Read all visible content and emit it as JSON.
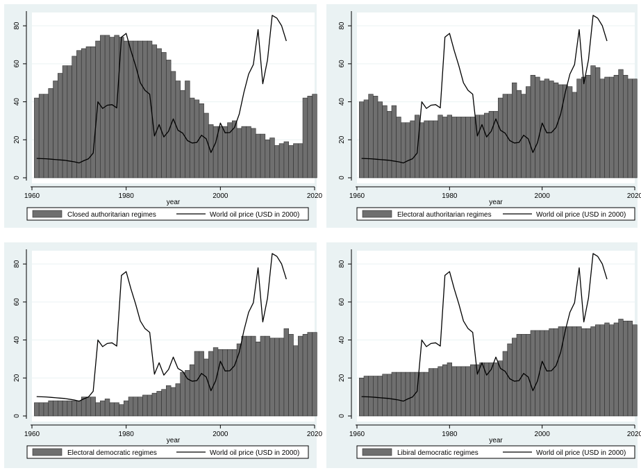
{
  "chart_data": [
    {
      "type": "bar",
      "xlabel": "year",
      "ylabel": "",
      "xlim": [
        1960,
        2020
      ],
      "ylim": [
        0,
        87
      ],
      "xticks": [
        "1960",
        "1980",
        "2000",
        "2020"
      ],
      "yticks": [
        "0",
        "20",
        "40",
        "60",
        "80"
      ],
      "grid": true,
      "legend_position": "bottom",
      "bar_x_start": 1961,
      "series": [
        {
          "name": "Closed authoritarian regimes",
          "kind": "bar",
          "values": [
            42,
            44,
            44,
            47,
            51,
            55,
            59,
            59,
            64,
            67,
            68,
            69,
            69,
            72,
            75,
            75,
            74,
            75,
            74,
            72,
            72,
            72,
            72,
            72,
            72,
            70,
            68,
            66,
            62,
            56,
            51,
            46,
            51,
            42,
            41,
            39,
            34,
            28,
            27,
            27,
            27,
            29,
            30,
            26,
            27,
            27,
            26,
            23,
            23,
            20,
            21,
            17,
            18,
            19,
            17,
            18,
            18,
            42,
            43,
            44
          ]
        },
        {
          "name": "World oil price (USD in 2000)",
          "kind": "line",
          "x": [
            1961,
            1962,
            1963,
            1964,
            1965,
            1966,
            1967,
            1968,
            1969,
            1970,
            1971,
            1972,
            1973,
            1974,
            1975,
            1976,
            1977,
            1978,
            1979,
            1980,
            1981,
            1982,
            1983,
            1984,
            1985,
            1986,
            1987,
            1988,
            1989,
            1990,
            1991,
            1992,
            1993,
            1994,
            1995,
            1996,
            1997,
            1998,
            1999,
            2000,
            2001,
            2002,
            2003,
            2004,
            2005,
            2006,
            2007,
            2008,
            2009,
            2010,
            2011,
            2012,
            2013,
            2014
          ],
          "values": [
            10.2,
            10.1,
            10,
            9.8,
            9.6,
            9.4,
            9.2,
            8.8,
            8.4,
            7.8,
            9,
            10,
            13,
            40,
            36.5,
            38.2,
            38.5,
            36.8,
            74,
            76,
            67,
            59,
            50,
            46,
            44,
            22,
            28,
            21.5,
            24.5,
            31,
            25,
            23.5,
            19.6,
            18.3,
            18.6,
            22.4,
            20.5,
            13.3,
            18.5,
            28.8,
            23.7,
            23.8,
            26.5,
            33.5,
            45,
            54.6,
            59.6,
            78,
            49.5,
            62,
            85.5,
            84,
            80,
            72
          ]
        }
      ],
      "legend": [
        "Closed authoritarian regimes",
        "World oil price (USD in 2000)"
      ]
    },
    {
      "type": "bar",
      "xlabel": "year",
      "ylabel": "",
      "xlim": [
        1960,
        2020
      ],
      "ylim": [
        0,
        87
      ],
      "xticks": [
        "1960",
        "1980",
        "2000",
        "2020"
      ],
      "yticks": [
        "0",
        "20",
        "40",
        "60",
        "80"
      ],
      "grid": true,
      "legend_position": "bottom",
      "bar_x_start": 1961,
      "series": [
        {
          "name": "Electoral authoritarian regimes",
          "kind": "bar",
          "values": [
            40,
            41,
            44,
            43,
            40,
            38,
            35,
            38,
            32,
            29,
            29,
            30,
            33,
            29,
            30,
            30,
            30,
            33,
            32,
            33,
            32,
            32,
            32,
            32,
            32,
            33,
            33,
            34,
            35,
            35,
            42,
            44,
            44,
            50,
            46,
            44,
            48,
            54,
            53,
            51,
            52,
            51,
            50,
            49,
            49,
            48,
            45,
            52,
            53,
            54,
            59,
            58,
            52,
            53,
            53,
            54,
            57,
            54,
            52,
            52
          ]
        },
        {
          "name": "World oil price (USD in 2000)",
          "kind": "line",
          "x": [
            1961,
            1962,
            1963,
            1964,
            1965,
            1966,
            1967,
            1968,
            1969,
            1970,
            1971,
            1972,
            1973,
            1974,
            1975,
            1976,
            1977,
            1978,
            1979,
            1980,
            1981,
            1982,
            1983,
            1984,
            1985,
            1986,
            1987,
            1988,
            1989,
            1990,
            1991,
            1992,
            1993,
            1994,
            1995,
            1996,
            1997,
            1998,
            1999,
            2000,
            2001,
            2002,
            2003,
            2004,
            2005,
            2006,
            2007,
            2008,
            2009,
            2010,
            2011,
            2012,
            2013,
            2014
          ],
          "values": [
            10.2,
            10.1,
            10,
            9.8,
            9.6,
            9.4,
            9.2,
            8.8,
            8.4,
            7.8,
            9,
            10,
            13,
            40,
            36.5,
            38.2,
            38.5,
            36.8,
            74,
            76,
            67,
            59,
            50,
            46,
            44,
            22,
            28,
            21.5,
            24.5,
            31,
            25,
            23.5,
            19.6,
            18.3,
            18.6,
            22.4,
            20.5,
            13.3,
            18.5,
            28.8,
            23.7,
            23.8,
            26.5,
            33.5,
            45,
            54.6,
            59.6,
            78,
            49.5,
            62,
            85.5,
            84,
            80,
            72
          ]
        }
      ],
      "legend": [
        "Electoral authoritarian regimes",
        "World oil price (USD in 2000)"
      ]
    },
    {
      "type": "bar",
      "xlabel": "year",
      "ylabel": "",
      "xlim": [
        1960,
        2020
      ],
      "ylim": [
        0,
        87
      ],
      "xticks": [
        "1960",
        "1980",
        "2000",
        "2020"
      ],
      "yticks": [
        "0",
        "20",
        "40",
        "60",
        "80"
      ],
      "grid": true,
      "legend_position": "bottom",
      "bar_x_start": 1961,
      "series": [
        {
          "name": "Electoral democratic regimes",
          "kind": "bar",
          "values": [
            7,
            7,
            7,
            8,
            8,
            8,
            8,
            8,
            8,
            8,
            10,
            10,
            10,
            7,
            8,
            9,
            7,
            7,
            6,
            8,
            10,
            10,
            10,
            11,
            11,
            12,
            13,
            14,
            16,
            15,
            17,
            23,
            24,
            27,
            34,
            34,
            30,
            34,
            36,
            35,
            35,
            35,
            35,
            38,
            42,
            42,
            42,
            39,
            42,
            42,
            41,
            41,
            41,
            46,
            43,
            37,
            42,
            43,
            44,
            44
          ]
        },
        {
          "name": "World oil price (USD in 2000)",
          "kind": "line",
          "x": [
            1961,
            1962,
            1963,
            1964,
            1965,
            1966,
            1967,
            1968,
            1969,
            1970,
            1971,
            1972,
            1973,
            1974,
            1975,
            1976,
            1977,
            1978,
            1979,
            1980,
            1981,
            1982,
            1983,
            1984,
            1985,
            1986,
            1987,
            1988,
            1989,
            1990,
            1991,
            1992,
            1993,
            1994,
            1995,
            1996,
            1997,
            1998,
            1999,
            2000,
            2001,
            2002,
            2003,
            2004,
            2005,
            2006,
            2007,
            2008,
            2009,
            2010,
            2011,
            2012,
            2013,
            2014
          ],
          "values": [
            10.2,
            10.1,
            10,
            9.8,
            9.6,
            9.4,
            9.2,
            8.8,
            8.4,
            7.8,
            9,
            10,
            13,
            40,
            36.5,
            38.2,
            38.5,
            36.8,
            74,
            76,
            67,
            59,
            50,
            46,
            44,
            22,
            28,
            21.5,
            24.5,
            31,
            25,
            23.5,
            19.6,
            18.3,
            18.6,
            22.4,
            20.5,
            13.3,
            18.5,
            28.8,
            23.7,
            23.8,
            26.5,
            33.5,
            45,
            54.6,
            59.6,
            78,
            49.5,
            62,
            85.5,
            84,
            80,
            72
          ]
        }
      ],
      "legend": [
        "Electoral democratic regimes",
        "World oil price (USD in 2000)"
      ]
    },
    {
      "type": "bar",
      "xlabel": "year",
      "ylabel": "",
      "xlim": [
        1960,
        2020
      ],
      "ylim": [
        0,
        87
      ],
      "xticks": [
        "1960",
        "1980",
        "2000",
        "2020"
      ],
      "yticks": [
        "0",
        "20",
        "40",
        "60",
        "80"
      ],
      "grid": true,
      "legend_position": "bottom",
      "bar_x_start": 1961,
      "series": [
        {
          "name": "Libiral democratic regimes",
          "kind": "bar",
          "values": [
            20,
            21,
            21,
            21,
            21,
            22,
            22,
            23,
            23,
            23,
            23,
            23,
            23,
            23,
            23,
            25,
            25,
            26,
            27,
            28,
            26,
            26,
            26,
            26,
            27,
            27,
            28,
            28,
            28,
            28,
            29,
            34,
            38,
            41,
            43,
            43,
            43,
            45,
            45,
            45,
            45,
            46,
            46,
            47,
            47,
            47,
            47,
            47,
            46,
            46,
            47,
            48,
            48,
            49,
            48,
            49,
            51,
            50,
            50,
            48
          ]
        },
        {
          "name": "World oil price (USD in 2000)",
          "kind": "line",
          "x": [
            1961,
            1962,
            1963,
            1964,
            1965,
            1966,
            1967,
            1968,
            1969,
            1970,
            1971,
            1972,
            1973,
            1974,
            1975,
            1976,
            1977,
            1978,
            1979,
            1980,
            1981,
            1982,
            1983,
            1984,
            1985,
            1986,
            1987,
            1988,
            1989,
            1990,
            1991,
            1992,
            1993,
            1994,
            1995,
            1996,
            1997,
            1998,
            1999,
            2000,
            2001,
            2002,
            2003,
            2004,
            2005,
            2006,
            2007,
            2008,
            2009,
            2010,
            2011,
            2012,
            2013,
            2014
          ],
          "values": [
            10.2,
            10.1,
            10,
            9.8,
            9.6,
            9.4,
            9.2,
            8.8,
            8.4,
            7.8,
            9,
            10,
            13,
            40,
            36.5,
            38.2,
            38.5,
            36.8,
            74,
            76,
            67,
            59,
            50,
            46,
            44,
            22,
            28,
            21.5,
            24.5,
            31,
            25,
            23.5,
            19.6,
            18.3,
            18.6,
            22.4,
            20.5,
            13.3,
            18.5,
            28.8,
            23.7,
            23.8,
            26.5,
            33.5,
            45,
            54.6,
            59.6,
            78,
            49.5,
            62,
            85.5,
            84,
            80,
            72
          ]
        }
      ],
      "legend": [
        "Libiral democratic regimes",
        "World oil price (USD in 2000)"
      ]
    }
  ],
  "colors": {
    "outer_bg": "#eaf2f3",
    "plot_bg": "#ffffff",
    "grid": "#eaf2f3",
    "bar_fill": "#6f6f6f",
    "bar_stroke": "#2f2f2f",
    "line": "#000000",
    "axis": "#000000"
  }
}
